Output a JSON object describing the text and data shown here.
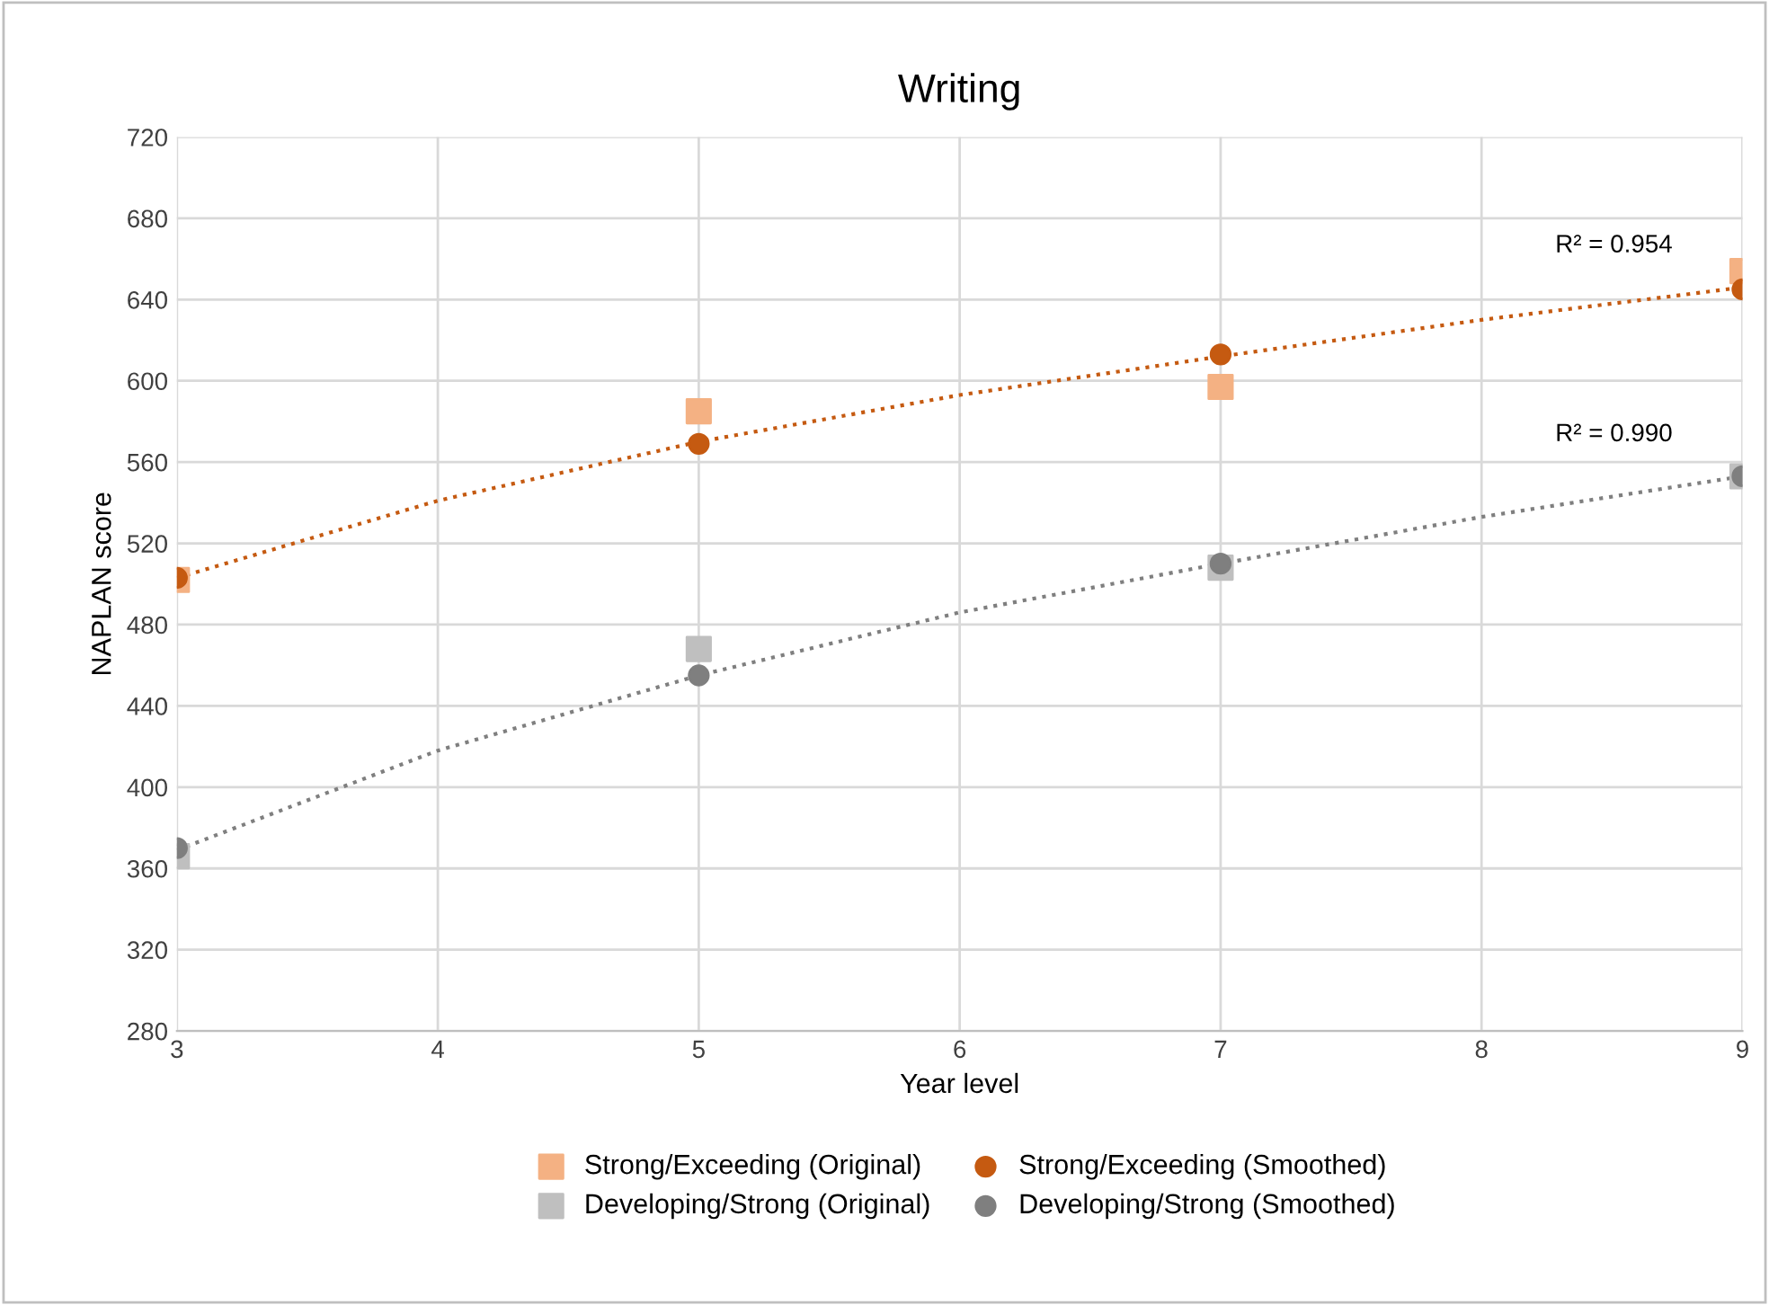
{
  "chart_data": {
    "type": "scatter",
    "title": "Writing",
    "xlabel": "Year level",
    "ylabel": "NAPLAN score",
    "xlim": [
      3,
      9
    ],
    "xticks": [
      3,
      4,
      5,
      6,
      7,
      8,
      9
    ],
    "ylim": [
      280,
      720
    ],
    "yticks": [
      280,
      320,
      360,
      400,
      440,
      480,
      520,
      560,
      600,
      640,
      680,
      720
    ],
    "grid": true,
    "legend": "bottom",
    "series": [
      {
        "name": "Strong/Exceeding (Original)",
        "color": "#f4b183",
        "marker": "square",
        "x": [
          3,
          5,
          7,
          9
        ],
        "values": [
          502,
          585,
          597,
          654
        ]
      },
      {
        "name": "Strong/Exceeding (Smoothed)",
        "color": "#c55a11",
        "marker": "circle",
        "x": [
          3,
          5,
          7,
          9
        ],
        "values": [
          503,
          569,
          613,
          645
        ]
      },
      {
        "name": "Developing/Strong (Original)",
        "color": "#bfbfbf",
        "marker": "square",
        "x": [
          3,
          5,
          7,
          9
        ],
        "values": [
          366,
          468,
          508,
          553
        ]
      },
      {
        "name": "Developing/Strong (Smoothed)",
        "color": "#7f7f7f",
        "marker": "circle",
        "x": [
          3,
          5,
          7,
          9
        ],
        "values": [
          370,
          455,
          510,
          553
        ]
      },
      {
        "type": "line",
        "color": "#c55a11",
        "marker": "none",
        "line_style": "dotted",
        "x": [
          3,
          4,
          5,
          6,
          7,
          8,
          9
        ],
        "values": [
          503,
          541,
          570,
          593,
          612,
          630,
          646
        ]
      },
      {
        "type": "line",
        "color": "#7f7f7f",
        "marker": "none",
        "line_style": "dotted",
        "x": [
          3,
          4,
          5,
          6,
          7,
          8,
          9
        ],
        "values": [
          369,
          418,
          455,
          486,
          510,
          533,
          553
        ]
      }
    ],
    "annotations": [
      "R² = 0.954",
      "R² = 0.990"
    ]
  }
}
